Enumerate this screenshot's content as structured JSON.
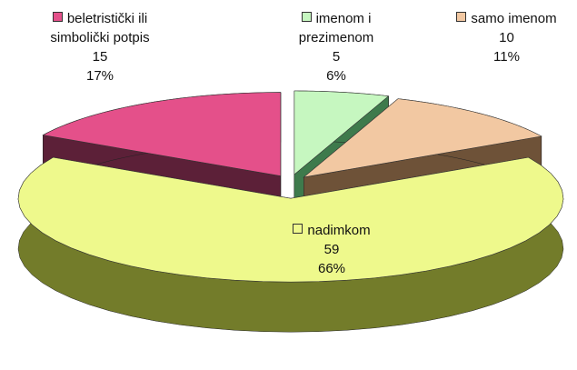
{
  "chart_data": {
    "type": "pie3d",
    "categories": [
      "beletristički ili simbolički potpis",
      "imenom i prezimenom",
      "samo imenom",
      "nadimkom"
    ],
    "values": [
      15,
      5,
      10,
      59
    ],
    "percent_labels": [
      "17%",
      "6%",
      "11%",
      "66%"
    ],
    "colors": [
      "#e4508a",
      "#c6f7c0",
      "#f2c8a2",
      "#eef98c"
    ],
    "side_colors": [
      "#5c2038",
      "#3e7a4c",
      "#6e5238",
      "#737c2a"
    ]
  }
}
